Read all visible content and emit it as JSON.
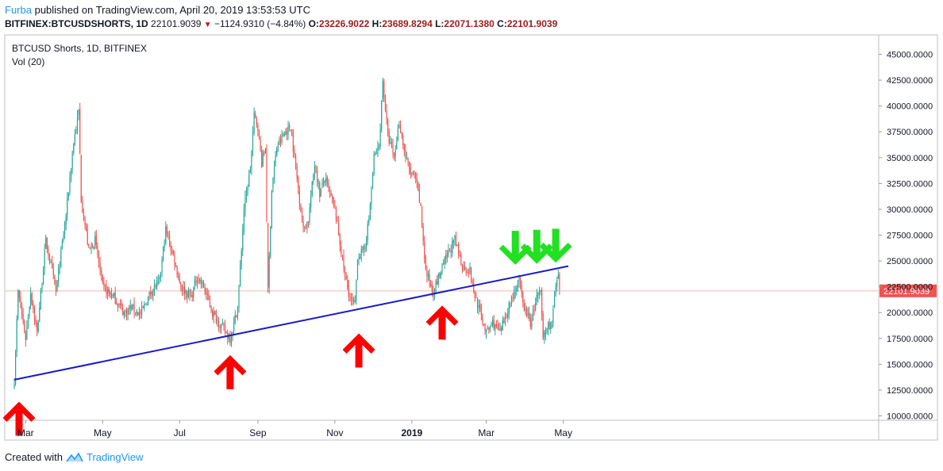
{
  "header": {
    "author": "Furba",
    "published_text": "published on TradingView.com, April 20, 2019 13:53:53 UTC",
    "symbol": "BITFINEX:BTCUSDSHORTS, 1D",
    "last": "22101.9039",
    "change": "−1124.9310 (−4.84%)",
    "o_label": "O:",
    "o_value": "23226.9022",
    "h_label": "H:",
    "h_value": "23689.8294",
    "l_label": "L:",
    "l_value": "22071.1380",
    "c_label": "C:",
    "c_value": "22101.9039"
  },
  "legend": {
    "series": "BTCUSD Shorts, 1D, BITFINEX",
    "indicator": "Vol (20)"
  },
  "footer": {
    "created_with": "Created with",
    "brand": "TradingView"
  },
  "colors": {
    "up": "#26a69a",
    "down": "#ef5350",
    "trendline": "#1a1ac8",
    "up_arrow": "#ff0000",
    "down_arrow": "#22e022",
    "price_line": "#f6b8b0",
    "price_tag": "#ef5350"
  },
  "chart_data": {
    "type": "candlestick",
    "title": "BTCUSD Shorts, 1D, BITFINEX",
    "ylim": [
      10000,
      45000
    ],
    "y_ticks": [
      "10000.0000",
      "12500.0000",
      "15000.0000",
      "17500.0000",
      "20000.0000",
      "22500.0000",
      "25000.0000",
      "27500.0000",
      "30000.0000",
      "32500.0000",
      "35000.0000",
      "37500.0000",
      "40000.0000",
      "42500.0000",
      "45000.0000"
    ],
    "x_ticks": [
      "Mar",
      "May",
      "Jul",
      "Sep",
      "Nov",
      "2019",
      "Mar",
      "May"
    ],
    "x_tick_dates": [
      "2018-03-01",
      "2018-05-01",
      "2018-07-01",
      "2018-09-01",
      "2018-11-01",
      "2019-01-01",
      "2019-03-01",
      "2019-05-01"
    ],
    "date_range": [
      "2018-02-20",
      "2019-05-07"
    ],
    "last_price": 22101.9039,
    "last_price_label": "22101.9039",
    "close_keypoints": [
      [
        "2018-02-20",
        13500
      ],
      [
        "2018-02-23",
        22000
      ],
      [
        "2018-03-01",
        17500
      ],
      [
        "2018-03-05",
        22000
      ],
      [
        "2018-03-10",
        18000
      ],
      [
        "2018-03-17",
        27000
      ],
      [
        "2018-03-25",
        22000
      ],
      [
        "2018-04-02",
        29500
      ],
      [
        "2018-04-08",
        36500
      ],
      [
        "2018-04-12",
        39500
      ],
      [
        "2018-04-14",
        31000
      ],
      [
        "2018-04-20",
        26000
      ],
      [
        "2018-04-25",
        27000
      ],
      [
        "2018-05-01",
        22500
      ],
      [
        "2018-05-10",
        21500
      ],
      [
        "2018-05-18",
        20000
      ],
      [
        "2018-05-24",
        20500
      ],
      [
        "2018-05-31",
        19800
      ],
      [
        "2018-06-08",
        22000
      ],
      [
        "2018-06-15",
        23000
      ],
      [
        "2018-06-20",
        28000
      ],
      [
        "2018-06-26",
        25500
      ],
      [
        "2018-07-02",
        22500
      ],
      [
        "2018-07-10",
        21500
      ],
      [
        "2018-07-15",
        23500
      ],
      [
        "2018-07-20",
        22500
      ],
      [
        "2018-07-27",
        20000
      ],
      [
        "2018-08-04",
        18500
      ],
      [
        "2018-08-10",
        17500
      ],
      [
        "2018-08-16",
        20500
      ],
      [
        "2018-08-21",
        30000
      ],
      [
        "2018-08-26",
        34000
      ],
      [
        "2018-08-29",
        39000
      ],
      [
        "2018-09-01",
        38000
      ],
      [
        "2018-09-04",
        34500
      ],
      [
        "2018-09-07",
        36000
      ],
      [
        "2018-09-09",
        22000
      ],
      [
        "2018-09-12",
        32000
      ],
      [
        "2018-09-16",
        36000
      ],
      [
        "2018-09-23",
        37500
      ],
      [
        "2018-09-27",
        38000
      ],
      [
        "2018-10-02",
        33000
      ],
      [
        "2018-10-07",
        28000
      ],
      [
        "2018-10-11",
        29000
      ],
      [
        "2018-10-16",
        34500
      ],
      [
        "2018-10-20",
        31500
      ],
      [
        "2018-10-24",
        33000
      ],
      [
        "2018-11-01",
        30000
      ],
      [
        "2018-11-09",
        23500
      ],
      [
        "2018-11-14",
        21000
      ],
      [
        "2018-11-17",
        20800
      ],
      [
        "2018-11-19",
        25500
      ],
      [
        "2018-11-24",
        26000
      ],
      [
        "2018-11-28",
        29000
      ],
      [
        "2018-12-02",
        35000
      ],
      [
        "2018-12-06",
        36000
      ],
      [
        "2018-12-09",
        42500
      ],
      [
        "2018-12-13",
        37000
      ],
      [
        "2018-12-18",
        35000
      ],
      [
        "2018-12-22",
        38500
      ],
      [
        "2018-12-27",
        35000
      ],
      [
        "2018-12-31",
        33500
      ],
      [
        "2019-01-04",
        33000
      ],
      [
        "2019-01-08",
        30000
      ],
      [
        "2019-01-12",
        24000
      ],
      [
        "2019-01-18",
        22000
      ],
      [
        "2019-01-24",
        24000
      ],
      [
        "2019-01-29",
        25500
      ],
      [
        "2019-02-04",
        27000
      ],
      [
        "2019-02-10",
        24500
      ],
      [
        "2019-02-16",
        24000
      ],
      [
        "2019-02-19",
        22000
      ],
      [
        "2019-02-23",
        20500
      ],
      [
        "2019-03-01",
        18000
      ],
      [
        "2019-03-06",
        19000
      ],
      [
        "2019-03-12",
        18000
      ],
      [
        "2019-03-17",
        20000
      ],
      [
        "2019-03-23",
        22000
      ],
      [
        "2019-03-27",
        23000
      ],
      [
        "2019-03-30",
        20800
      ],
      [
        "2019-04-05",
        19000
      ],
      [
        "2019-04-10",
        21500
      ],
      [
        "2019-04-13",
        21800
      ],
      [
        "2019-04-15",
        17500
      ],
      [
        "2019-04-18",
        18700
      ],
      [
        "2019-04-22",
        19000
      ],
      [
        "2019-04-25",
        22500
      ],
      [
        "2019-04-27",
        23200
      ],
      [
        "2019-04-28",
        22100
      ]
    ],
    "trendline": {
      "from": [
        "2018-02-20",
        13500
      ],
      "to": [
        "2019-05-05",
        24500
      ]
    },
    "annotations": {
      "up_arrows": [
        [
          "2018-02-20",
          11000
        ],
        [
          "2018-08-10",
          15500
        ],
        [
          "2018-11-20",
          17600
        ],
        [
          "2019-01-25",
          20300
        ]
      ],
      "down_arrows": [
        [
          "2019-03-24",
          25000
        ],
        [
          "2019-04-10",
          25100
        ],
        [
          "2019-04-25",
          25200
        ]
      ]
    }
  }
}
